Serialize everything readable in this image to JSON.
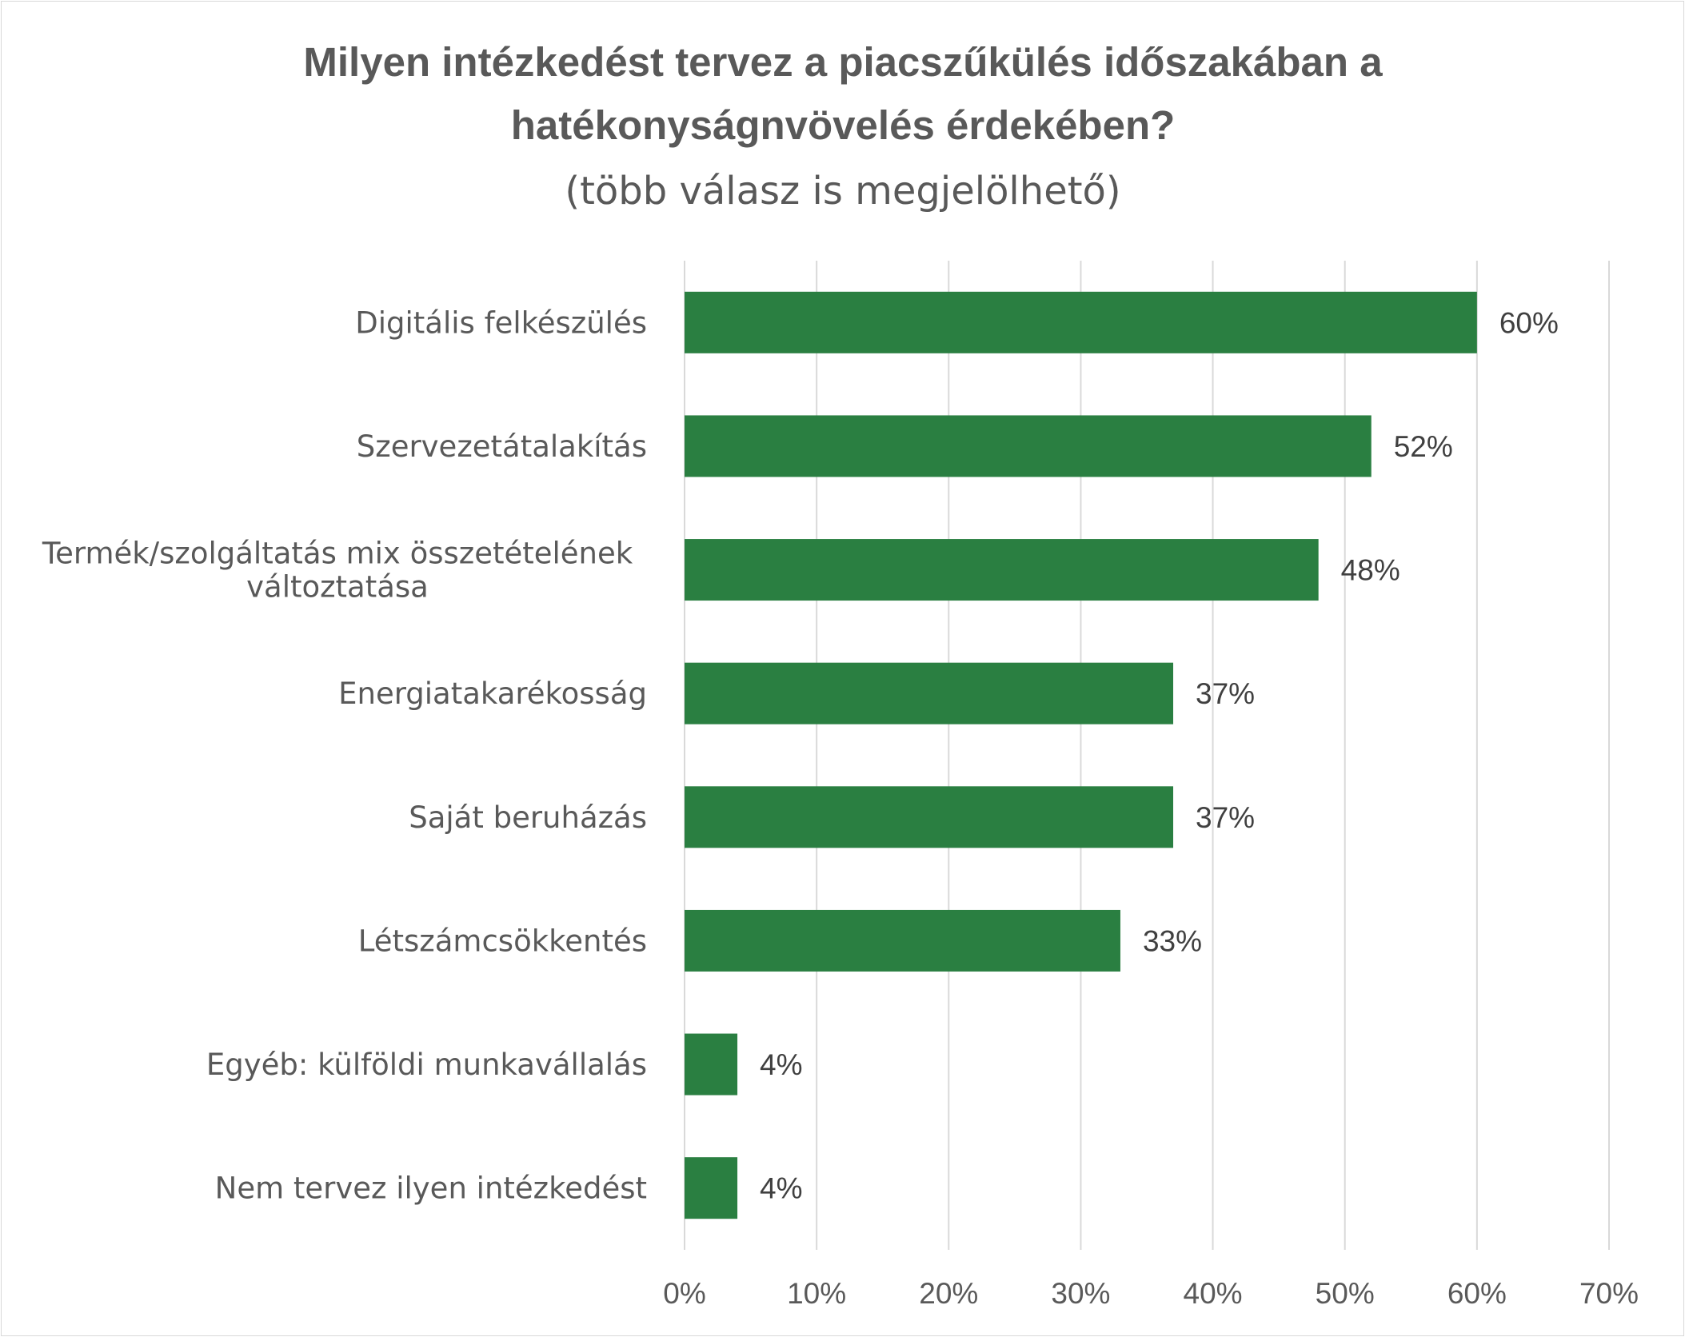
{
  "chart_data": {
    "type": "bar",
    "orientation": "horizontal",
    "title_lines": [
      "Milyen intézkedést tervez a piacszűkülés időszakában a",
      "hatékonyságnvövelés érdekében?"
    ],
    "subtitle": "(több válasz is megjelölhető)",
    "categories": [
      [
        "Digitális felkészülés"
      ],
      [
        "Szervezetátalakítás"
      ],
      [
        "Termék/szolgáltatás mix összetételének",
        "változtatása"
      ],
      [
        "Energiatakarékosság"
      ],
      [
        "Saját beruházás"
      ],
      [
        "Létszámcsökkentés"
      ],
      [
        "Egyéb: külföldi munkavállalás"
      ],
      [
        "Nem tervez ilyen intézkedést"
      ]
    ],
    "values": [
      60,
      52,
      48,
      37,
      37,
      33,
      4,
      4
    ],
    "data_labels": [
      "60%",
      "52%",
      "48%",
      "37%",
      "37%",
      "33%",
      "4%",
      "4%"
    ],
    "xlim": [
      0,
      70
    ],
    "x_ticks": [
      0,
      10,
      20,
      30,
      40,
      50,
      60,
      70
    ],
    "x_tick_labels": [
      "0%",
      "10%",
      "20%",
      "30%",
      "40%",
      "50%",
      "60%",
      "70%"
    ],
    "grid": true,
    "legend": "none",
    "colors": {
      "bar": "#2a7f41",
      "grid": "#d9d9d9",
      "text": "#595959",
      "data_label": "#404040"
    }
  }
}
